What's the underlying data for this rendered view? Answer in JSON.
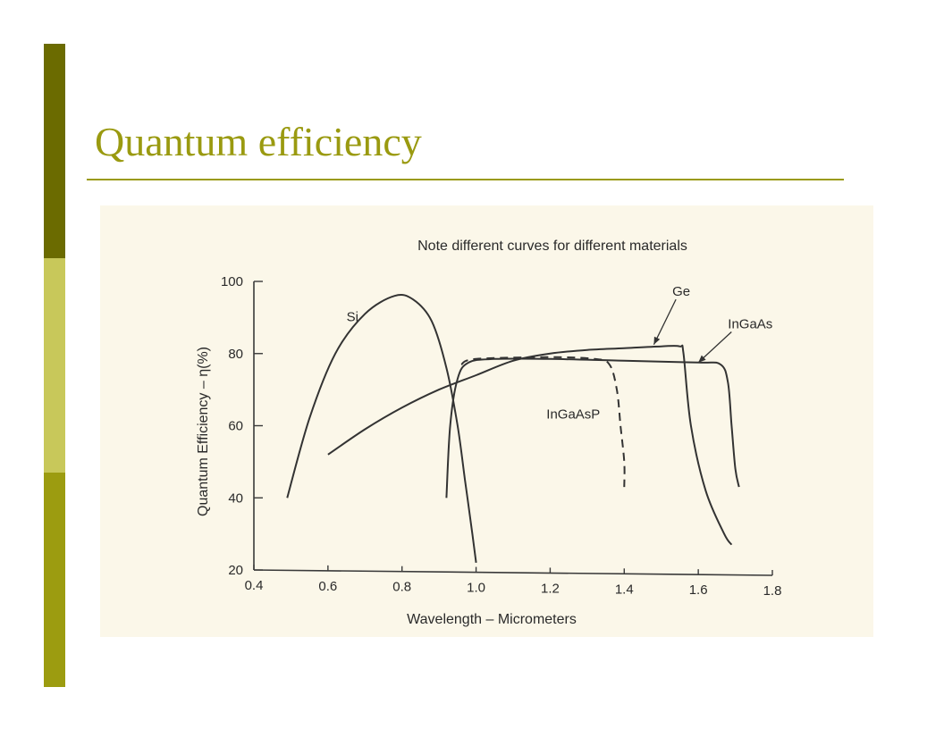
{
  "slide": {
    "title": "Quantum efficiency",
    "colors": {
      "title": "#9a9a10",
      "bar_dark": "#6b6b00",
      "bar_light": "#c8c85a",
      "bar_mid": "#9c9c10",
      "scan_bg": "#fbf7e9"
    }
  },
  "chart_data": {
    "type": "line",
    "title": "Note different curves for different materials",
    "xlabel": "Wavelength – Micrometers",
    "ylabel": "Quantum Efficiency – η(%)",
    "xlim": [
      0.4,
      1.8
    ],
    "ylim": [
      20,
      100
    ],
    "xticks": [
      "0.4",
      "0.6",
      "0.8",
      "1.0",
      "1.2",
      "1.4",
      "1.6",
      "1.8"
    ],
    "yticks": [
      "20",
      "40",
      "60",
      "80",
      "100"
    ],
    "grid": false,
    "series": [
      {
        "name": "Si",
        "style": "solid",
        "points": [
          [
            0.49,
            40
          ],
          [
            0.55,
            62
          ],
          [
            0.62,
            80
          ],
          [
            0.7,
            91
          ],
          [
            0.78,
            96
          ],
          [
            0.83,
            95
          ],
          [
            0.88,
            89
          ],
          [
            0.92,
            76
          ],
          [
            0.95,
            60
          ],
          [
            0.97,
            45
          ],
          [
            0.99,
            30
          ],
          [
            1.0,
            22
          ]
        ]
      },
      {
        "name": "Ge",
        "style": "solid",
        "points": [
          [
            0.6,
            52
          ],
          [
            0.7,
            59
          ],
          [
            0.8,
            65
          ],
          [
            0.9,
            70
          ],
          [
            1.0,
            74
          ],
          [
            1.1,
            78
          ],
          [
            1.2,
            80
          ],
          [
            1.3,
            81
          ],
          [
            1.4,
            81.5
          ],
          [
            1.5,
            82
          ],
          [
            1.55,
            82
          ],
          [
            1.56,
            80
          ],
          [
            1.58,
            60
          ],
          [
            1.62,
            42
          ],
          [
            1.67,
            30
          ],
          [
            1.69,
            27
          ]
        ]
      },
      {
        "name": "InGaAs",
        "style": "solid",
        "points": [
          [
            0.92,
            40
          ],
          [
            0.93,
            60
          ],
          [
            0.95,
            73
          ],
          [
            0.98,
            77.5
          ],
          [
            1.05,
            78.5
          ],
          [
            1.2,
            78.5
          ],
          [
            1.4,
            78
          ],
          [
            1.6,
            77.5
          ],
          [
            1.66,
            77
          ],
          [
            1.68,
            72
          ],
          [
            1.69,
            60
          ],
          [
            1.7,
            48
          ],
          [
            1.71,
            43
          ]
        ]
      },
      {
        "name": "InGaAsP",
        "style": "dashed",
        "points": [
          [
            0.96,
            77
          ],
          [
            1.0,
            78.5
          ],
          [
            1.2,
            79
          ],
          [
            1.32,
            78.5
          ],
          [
            1.36,
            77
          ],
          [
            1.38,
            70
          ],
          [
            1.39,
            60
          ],
          [
            1.4,
            50
          ],
          [
            1.4,
            43
          ]
        ]
      }
    ],
    "labels": [
      {
        "text": "Si",
        "x": 0.65,
        "y": 89,
        "series": "Si"
      },
      {
        "text": "Ge",
        "x": 1.53,
        "y": 96,
        "series": "Ge",
        "arrow_to": [
          1.48,
          82
        ]
      },
      {
        "text": "InGaAs",
        "x": 1.68,
        "y": 87,
        "series": "InGaAs",
        "arrow_to": [
          1.6,
          77
        ]
      },
      {
        "text": "InGaAsP",
        "x": 1.19,
        "y": 62,
        "series": "InGaAsP"
      }
    ]
  }
}
